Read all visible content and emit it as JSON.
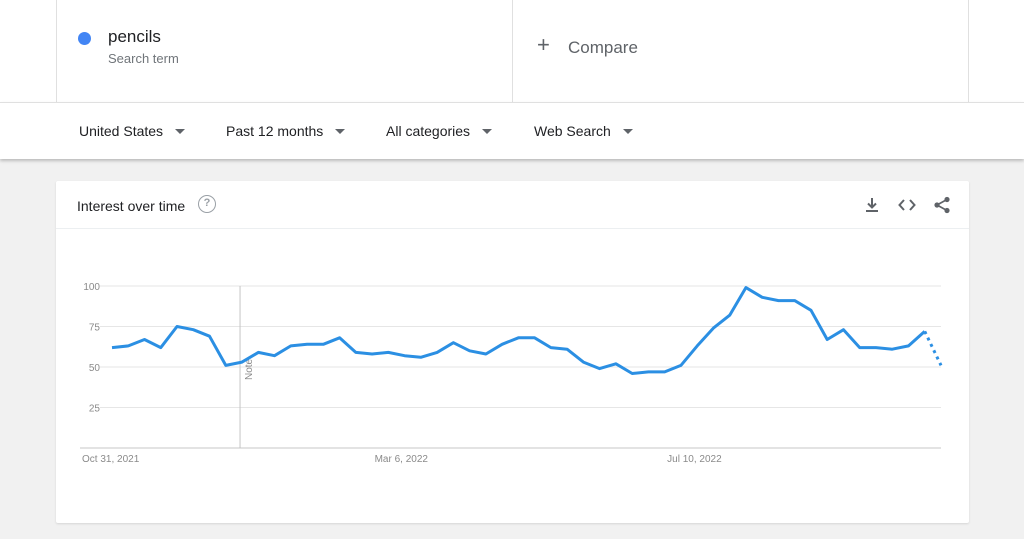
{
  "term": {
    "name": "pencils",
    "subtitle": "Search term",
    "color": "#4285f4"
  },
  "compare": {
    "icon": "plus-icon",
    "label": "Compare"
  },
  "filters": [
    {
      "label": "United States"
    },
    {
      "label": "Past 12 months"
    },
    {
      "label": "All categories"
    },
    {
      "label": "Web Search"
    }
  ],
  "card": {
    "title": "Interest over time",
    "help_icon": "help-circle-icon",
    "help_glyph": "?",
    "icons": [
      "download-icon",
      "embed-code-icon",
      "share-icon"
    ]
  },
  "chart_data": {
    "type": "line",
    "title": "Interest over time",
    "xlabel": "",
    "ylabel": "",
    "ylim": [
      0,
      100
    ],
    "y_ticks": [
      25,
      50,
      75,
      100
    ],
    "x_tick_labels": [
      "Oct 31, 2021",
      "Mar 6, 2022",
      "Jul 10, 2022"
    ],
    "x_tick_indices": [
      0,
      18,
      36
    ],
    "note_marker": {
      "index": 8,
      "label": "Note"
    },
    "line_color": "#2b8fe3",
    "partial_last_point": true,
    "grid": true,
    "series": [
      {
        "values": [
          62,
          63,
          67,
          62,
          75,
          73,
          69,
          51,
          53,
          59,
          57,
          63,
          64,
          64,
          68,
          59,
          58,
          59,
          57,
          56,
          59,
          65,
          60,
          58,
          64,
          68,
          68,
          62,
          61,
          53,
          49,
          52,
          46,
          47,
          47,
          51,
          63,
          74,
          82,
          99,
          93,
          91,
          91,
          85,
          67,
          73,
          62,
          62,
          61,
          63,
          72,
          51
        ]
      }
    ]
  }
}
